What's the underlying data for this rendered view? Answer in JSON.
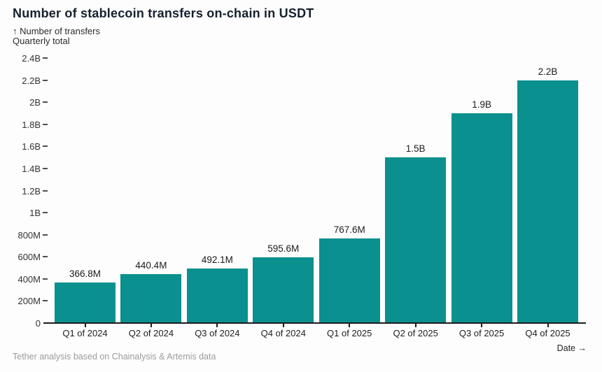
{
  "title": "Number of stablecoin transfers on-chain in USDT",
  "y_axis_title_line1": "↑ Number of transfers",
  "y_axis_title_line2": "Quarterly total",
  "x_axis_title": "Date →",
  "source_note": "Tether analysis based on Chainalysis & Artemis data",
  "bar_color": "#0a908e",
  "chart_data": {
    "type": "bar",
    "title": "Number of stablecoin transfers on-chain in USDT",
    "xlabel": "Date",
    "ylabel": "Number of transfers (Quarterly total)",
    "categories": [
      "Q1 of 2024",
      "Q2 of 2024",
      "Q3 of 2024",
      "Q4 of 2024",
      "Q1 of 2025",
      "Q2 of 2025",
      "Q3 of 2025",
      "Q4 of 2025"
    ],
    "values_millions": [
      366.8,
      440.4,
      492.1,
      595.6,
      767.6,
      1500,
      1900,
      2200
    ],
    "value_labels": [
      "366.8M",
      "440.4M",
      "492.1M",
      "595.6M",
      "767.6M",
      "1.5B",
      "1.9B",
      "2.2B"
    ],
    "ylim_millions": [
      0,
      2400
    ],
    "ytick_values_millions": [
      0,
      200,
      400,
      600,
      800,
      1000,
      1200,
      1400,
      1600,
      1800,
      2000,
      2200,
      2400
    ],
    "ytick_labels": [
      "0",
      "200M",
      "400M",
      "600M",
      "800M",
      "1B",
      "1.2B",
      "1.4B",
      "1.6B",
      "1.8B",
      "2B",
      "2.2B",
      "2.4B"
    ],
    "legend": null,
    "grid": false
  }
}
